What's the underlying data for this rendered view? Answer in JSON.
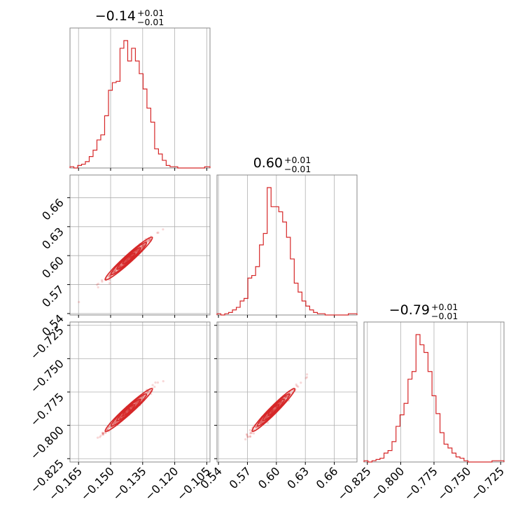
{
  "chart_data": {
    "type": "corner",
    "color": "#d62728",
    "parameters": [
      {
        "title_main": "−0.14",
        "title_plus": "+0.01",
        "title_minus": "−0.01",
        "range": [
          -0.169,
          -0.1035
        ],
        "ticks": [
          -0.165,
          -0.15,
          -0.135,
          -0.12,
          -0.105
        ],
        "tick_labels": [
          "−0.165",
          "−0.150",
          "−0.135",
          "−0.120",
          "−0.105"
        ],
        "mean": -0.1415,
        "sd": 0.0055
      },
      {
        "title_main": "0.60",
        "title_plus": "+0.01",
        "title_minus": "−0.01",
        "range": [
          0.5385,
          0.6835
        ],
        "ticks": [
          0.54,
          0.57,
          0.6,
          0.63,
          0.66
        ],
        "tick_labels": [
          "0.54",
          "0.57",
          "0.60",
          "0.63",
          "0.66"
        ],
        "mean": 0.597,
        "sd": 0.011
      },
      {
        "title_main": "−0.79",
        "title_plus": "+0.01",
        "title_minus": "−0.01",
        "range": [
          -0.8275,
          -0.7225
        ],
        "ticks": [
          -0.825,
          -0.8,
          -0.775,
          -0.75,
          -0.725
        ],
        "tick_labels": [
          "−0.825",
          "−0.800",
          "−0.775",
          "−0.750",
          "−0.725"
        ],
        "mean": -0.7885,
        "sd": 0.008
      }
    ],
    "histograms": [
      {
        "bin_edges": [
          -0.169,
          -0.1672,
          -0.1654,
          -0.1636,
          -0.1618,
          -0.16,
          -0.1582,
          -0.1564,
          -0.1546,
          -0.1528,
          -0.151,
          -0.1492,
          -0.1474,
          -0.1456,
          -0.1438,
          -0.142,
          -0.1402,
          -0.1384,
          -0.1366,
          -0.1348,
          -0.133,
          -0.1312,
          -0.1294,
          -0.1276,
          -0.1258,
          -0.124,
          -0.1222,
          -0.1204,
          -0.1186,
          -0.1168,
          -0.115,
          -0.1132,
          -0.1114,
          -0.1096,
          -0.1078,
          -0.106,
          -0.1035
        ],
        "counts": [
          1,
          0,
          2,
          3,
          5,
          9,
          14,
          22,
          26,
          41,
          61,
          67,
          68,
          94,
          100,
          84,
          94,
          84,
          74,
          62,
          47,
          36,
          15,
          11,
          6,
          2,
          1,
          1,
          0,
          0,
          0,
          0,
          0,
          0,
          0,
          1
        ]
      },
      {
        "bin_edges": [
          0.5385,
          0.5425,
          0.5465,
          0.5505,
          0.5545,
          0.5585,
          0.5625,
          0.5665,
          0.5705,
          0.5745,
          0.5785,
          0.5825,
          0.5865,
          0.5905,
          0.5945,
          0.5985,
          0.6025,
          0.6065,
          0.6105,
          0.6145,
          0.6185,
          0.6225,
          0.6265,
          0.6305,
          0.6345,
          0.6385,
          0.6425,
          0.6465,
          0.6505,
          0.6545,
          0.6585,
          0.6625,
          0.6665,
          0.6705,
          0.6745,
          0.6835
        ],
        "counts": [
          1,
          0,
          1,
          2,
          4,
          6,
          11,
          13,
          29,
          31,
          38,
          55,
          64,
          100,
          85,
          85,
          81,
          73,
          61,
          44,
          25,
          18,
          11,
          7,
          4,
          2,
          1,
          1,
          0,
          0,
          0,
          0,
          0,
          0,
          1
        ]
      },
      {
        "bin_edges": [
          -0.8275,
          -0.8245,
          -0.8215,
          -0.8185,
          -0.8155,
          -0.8125,
          -0.8095,
          -0.8065,
          -0.8035,
          -0.8005,
          -0.7975,
          -0.7945,
          -0.7915,
          -0.7885,
          -0.7855,
          -0.7825,
          -0.7795,
          -0.7765,
          -0.7735,
          -0.7705,
          -0.7675,
          -0.7645,
          -0.7615,
          -0.7585,
          -0.7555,
          -0.7525,
          -0.7495,
          -0.7465,
          -0.7435,
          -0.7405,
          -0.7375,
          -0.7345,
          -0.7315,
          -0.7225
        ],
        "counts": [
          1,
          0,
          1,
          2,
          3,
          7,
          9,
          16,
          28,
          37,
          46,
          65,
          71,
          100,
          92,
          86,
          71,
          52,
          38,
          23,
          14,
          11,
          7,
          4,
          3,
          1,
          0,
          0,
          0,
          0,
          0,
          0,
          1
        ]
      }
    ],
    "pairs": [
      {
        "x": 0,
        "y": 1,
        "correlation": 0.985
      },
      {
        "x": 0,
        "y": 2,
        "correlation": 0.985
      },
      {
        "x": 1,
        "y": 2,
        "correlation": 0.985
      }
    ],
    "grid": true,
    "legend": "none"
  }
}
